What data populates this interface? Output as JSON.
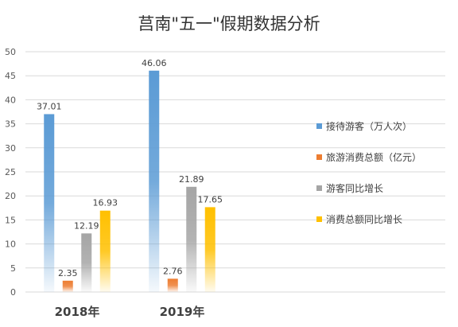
{
  "chart_data": {
    "type": "bar",
    "title": "莒南\"五一\"假期数据分析",
    "categories": [
      "2018年",
      "2019年"
    ],
    "series": [
      {
        "name": "接待游客（万人次）",
        "values": [
          37.01,
          46.06
        ],
        "color": "#5b9bd5"
      },
      {
        "name": "旅游消费总额（亿元）",
        "values": [
          2.35,
          2.76
        ],
        "color": "#ed7d31"
      },
      {
        "name": "游客同比增长",
        "values": [
          12.19,
          21.89
        ],
        "color": "#a5a5a5"
      },
      {
        "name": "消费总额同比增长",
        "values": [
          16.93,
          17.65
        ],
        "color": "#ffc000"
      }
    ],
    "ylim": [
      0,
      50
    ],
    "yticks": [
      0,
      5,
      10,
      15,
      20,
      25,
      30,
      35,
      40,
      45,
      50
    ],
    "grid": true,
    "legend_position": "right"
  }
}
